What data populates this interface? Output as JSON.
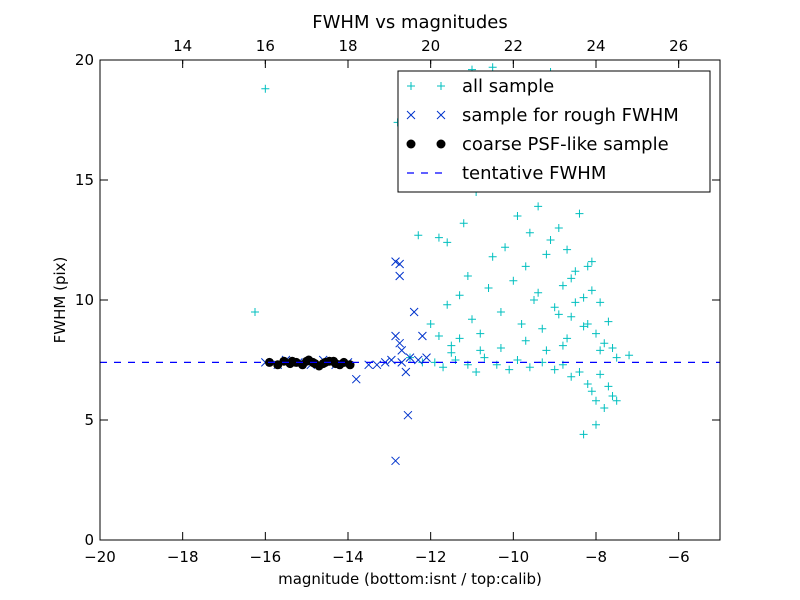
{
  "chart_data": {
    "type": "scatter",
    "title": "FWHM vs magnitudes",
    "xlabel": "magnitude (bottom:isnt / top:calib)",
    "ylabel": "FWHM (pix)",
    "xlim": [
      -20,
      -5
    ],
    "ylim": [
      0,
      20
    ],
    "x_ticks": [
      -20,
      -18,
      -16,
      -14,
      -12,
      -10,
      -8,
      -6
    ],
    "x_tick_labels": [
      "−20",
      "−18",
      "−16",
      "−14",
      "−12",
      "−10",
      "−8",
      "−6"
    ],
    "y_ticks": [
      0,
      5,
      10,
      15,
      20
    ],
    "y_tick_labels": [
      "0",
      "5",
      "10",
      "15",
      "20"
    ],
    "top_axis": {
      "offset": 32.0,
      "ticks": [
        14,
        16,
        18,
        20,
        22,
        24,
        26
      ],
      "tick_labels": [
        "14",
        "16",
        "18",
        "20",
        "22",
        "24",
        "26"
      ]
    },
    "grid": false,
    "legend_position": "top-right",
    "series": [
      {
        "name": "all sample",
        "marker": "plus",
        "color": "#00bfbf",
        "points": [
          [
            -16.25,
            9.5
          ],
          [
            -16.0,
            18.8
          ],
          [
            -12.3,
            12.7
          ],
          [
            -11.8,
            12.6
          ],
          [
            -11.6,
            12.4
          ],
          [
            -11.2,
            13.2
          ],
          [
            -10.9,
            14.5
          ],
          [
            -10.5,
            15.2
          ],
          [
            -10.1,
            16.0
          ],
          [
            -9.8,
            17.2
          ],
          [
            -9.5,
            18.5
          ],
          [
            -9.2,
            17.0
          ],
          [
            -9.0,
            16.2
          ],
          [
            -8.8,
            15.5
          ],
          [
            -8.6,
            16.8
          ],
          [
            -8.4,
            17.8
          ],
          [
            -8.2,
            16.3
          ],
          [
            -11.0,
            19.6
          ],
          [
            -10.5,
            19.7
          ],
          [
            -9.1,
            19.5
          ],
          [
            -12.8,
            17.4
          ],
          [
            -12.7,
            17.2
          ],
          [
            -12.0,
            9.0
          ],
          [
            -11.8,
            8.5
          ],
          [
            -11.6,
            9.8
          ],
          [
            -11.5,
            8.1
          ],
          [
            -11.3,
            10.2
          ],
          [
            -11.1,
            11.0
          ],
          [
            -11.0,
            9.2
          ],
          [
            -10.8,
            8.6
          ],
          [
            -10.6,
            10.5
          ],
          [
            -10.5,
            11.8
          ],
          [
            -10.3,
            9.5
          ],
          [
            -10.2,
            12.2
          ],
          [
            -10.0,
            10.8
          ],
          [
            -9.9,
            13.5
          ],
          [
            -9.8,
            9.0
          ],
          [
            -9.7,
            11.4
          ],
          [
            -9.6,
            12.8
          ],
          [
            -9.5,
            10.0
          ],
          [
            -9.4,
            13.9
          ],
          [
            -9.3,
            8.8
          ],
          [
            -9.2,
            11.9
          ],
          [
            -9.1,
            12.5
          ],
          [
            -9.0,
            9.7
          ],
          [
            -8.9,
            13.0
          ],
          [
            -8.8,
            10.6
          ],
          [
            -8.7,
            12.1
          ],
          [
            -8.6,
            9.3
          ],
          [
            -8.5,
            11.2
          ],
          [
            -8.4,
            13.6
          ],
          [
            -8.3,
            10.1
          ],
          [
            -8.2,
            9.0
          ],
          [
            -8.1,
            11.6
          ],
          [
            -8.0,
            8.6
          ],
          [
            -7.9,
            9.9
          ],
          [
            -7.8,
            8.2
          ],
          [
            -7.7,
            9.1
          ],
          [
            -7.6,
            8.0
          ],
          [
            -7.5,
            7.6
          ],
          [
            -7.2,
            7.7
          ],
          [
            -11.9,
            7.4
          ],
          [
            -11.7,
            7.2
          ],
          [
            -11.4,
            7.5
          ],
          [
            -11.1,
            7.3
          ],
          [
            -10.9,
            7.0
          ],
          [
            -10.7,
            7.6
          ],
          [
            -10.4,
            7.3
          ],
          [
            -10.1,
            7.1
          ],
          [
            -9.9,
            7.5
          ],
          [
            -9.6,
            7.2
          ],
          [
            -9.3,
            7.4
          ],
          [
            -9.0,
            7.1
          ],
          [
            -8.8,
            7.3
          ],
          [
            -8.6,
            6.8
          ],
          [
            -8.4,
            7.0
          ],
          [
            -8.2,
            6.5
          ],
          [
            -8.1,
            6.2
          ],
          [
            -8.0,
            5.8
          ],
          [
            -7.9,
            6.9
          ],
          [
            -7.8,
            5.5
          ],
          [
            -7.7,
            6.4
          ],
          [
            -7.6,
            6.0
          ],
          [
            -8.3,
            4.4
          ],
          [
            -8.0,
            4.8
          ],
          [
            -7.5,
            5.8
          ],
          [
            -9.4,
            10.3
          ],
          [
            -8.9,
            9.4
          ],
          [
            -8.7,
            8.4
          ],
          [
            -8.5,
            9.9
          ],
          [
            -8.3,
            8.9
          ],
          [
            -8.1,
            10.4
          ],
          [
            -7.9,
            7.9
          ],
          [
            -8.6,
            10.9
          ],
          [
            -8.2,
            11.4
          ],
          [
            -8.8,
            8.1
          ],
          [
            -9.2,
            7.9
          ],
          [
            -9.7,
            8.3
          ],
          [
            -10.3,
            8.0
          ],
          [
            -10.8,
            7.9
          ],
          [
            -11.3,
            8.4
          ],
          [
            -12.5,
            7.6
          ],
          [
            -12.2,
            7.4
          ],
          [
            -11.5,
            7.8
          ]
        ]
      },
      {
        "name": "sample for rough FWHM",
        "marker": "x",
        "color": "#0033cc",
        "points": [
          [
            -16.0,
            7.4
          ],
          [
            -15.7,
            7.3
          ],
          [
            -15.5,
            7.5
          ],
          [
            -15.2,
            7.4
          ],
          [
            -14.9,
            7.3
          ],
          [
            -14.6,
            7.5
          ],
          [
            -14.3,
            7.3
          ],
          [
            -14.0,
            7.4
          ],
          [
            -13.8,
            6.7
          ],
          [
            -13.5,
            7.3
          ],
          [
            -13.3,
            7.3
          ],
          [
            -13.1,
            7.4
          ],
          [
            -12.95,
            7.5
          ],
          [
            -12.85,
            11.6
          ],
          [
            -12.75,
            11.5
          ],
          [
            -12.75,
            11.0
          ],
          [
            -12.85,
            8.5
          ],
          [
            -12.75,
            8.2
          ],
          [
            -12.7,
            7.9
          ],
          [
            -12.6,
            7.0
          ],
          [
            -12.55,
            5.2
          ],
          [
            -12.85,
            3.3
          ],
          [
            -12.4,
            9.5
          ],
          [
            -12.2,
            8.5
          ],
          [
            -12.5,
            7.6
          ],
          [
            -12.3,
            7.5
          ],
          [
            -12.1,
            7.6
          ],
          [
            -12.7,
            7.4
          ]
        ]
      },
      {
        "name": "coarse PSF-like sample",
        "marker": "circle",
        "color": "#000000",
        "points": [
          [
            -15.9,
            7.4
          ],
          [
            -15.7,
            7.3
          ],
          [
            -15.55,
            7.45
          ],
          [
            -15.4,
            7.35
          ],
          [
            -15.25,
            7.4
          ],
          [
            -15.1,
            7.3
          ],
          [
            -14.95,
            7.5
          ],
          [
            -14.8,
            7.35
          ],
          [
            -14.7,
            7.25
          ],
          [
            -14.55,
            7.4
          ],
          [
            -14.45,
            7.45
          ],
          [
            -14.3,
            7.35
          ],
          [
            -14.2,
            7.3
          ],
          [
            -14.1,
            7.4
          ],
          [
            -13.95,
            7.3
          ],
          [
            -15.0,
            7.45
          ],
          [
            -14.85,
            7.4
          ],
          [
            -15.35,
            7.45
          ],
          [
            -14.6,
            7.35
          ],
          [
            -14.35,
            7.45
          ]
        ]
      },
      {
        "name": "tentative FWHM",
        "marker": "dashed-line",
        "color": "#0000ff",
        "y": 7.4
      }
    ]
  }
}
